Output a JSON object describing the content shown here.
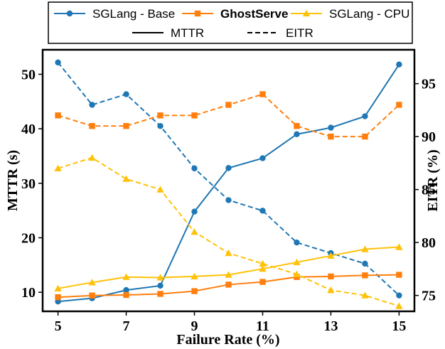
{
  "chart_data": {
    "type": "line",
    "xlabel": "Failure Rate (%)",
    "ylabel": "MTTR (s)",
    "y2label": "EITR (%)",
    "x": [
      5,
      6,
      7,
      8,
      9,
      10,
      11,
      12,
      13,
      14,
      15
    ],
    "xticks": [
      5,
      7,
      9,
      11,
      13,
      15
    ],
    "xlim": [
      4.55,
      15.45
    ],
    "ylim": [
      6.5,
      54.5
    ],
    "yticks": [
      10,
      20,
      30,
      40,
      50
    ],
    "y2lim": [
      73.5,
      98.2
    ],
    "y2ticks": [
      75,
      80,
      85,
      90,
      95
    ],
    "grid": false,
    "legend_placement": "top",
    "series": [
      {
        "name": "SGLang - Base",
        "color": "#1f77b4",
        "marker": "circle",
        "mttr": [
          8.3,
          8.9,
          10.4,
          11.2,
          24.8,
          32.8,
          34.6,
          39.0,
          40.2,
          42.3,
          51.8
        ],
        "eitr": [
          97.0,
          93.0,
          94.0,
          91.0,
          87.0,
          84.0,
          83.0,
          80.0,
          79.0,
          78.0,
          75.0
        ]
      },
      {
        "name": "GhostServe",
        "name_bold": true,
        "color": "#ff7f0e",
        "marker": "square",
        "mttr": [
          9.1,
          9.4,
          9.5,
          9.7,
          10.2,
          11.4,
          11.9,
          12.8,
          12.9,
          13.1,
          13.2
        ],
        "eitr": [
          92.0,
          91.0,
          91.0,
          92.0,
          92.0,
          93.0,
          94.0,
          91.0,
          90.0,
          90.0,
          93.0
        ]
      },
      {
        "name": "SGLang - CPU",
        "color": "#ffc20a",
        "marker": "triangle",
        "mttr": [
          10.7,
          11.8,
          12.8,
          12.7,
          12.9,
          13.2,
          14.3,
          15.5,
          16.7,
          17.9,
          18.3
        ],
        "eitr": [
          87.0,
          88.0,
          86.0,
          85.0,
          81.0,
          79.0,
          78.0,
          77.0,
          75.5,
          75.0,
          74.0
        ]
      }
    ],
    "line_styles": [
      {
        "name": "MTTR",
        "style": "solid"
      },
      {
        "name": "EITR",
        "style": "dashed"
      }
    ]
  }
}
